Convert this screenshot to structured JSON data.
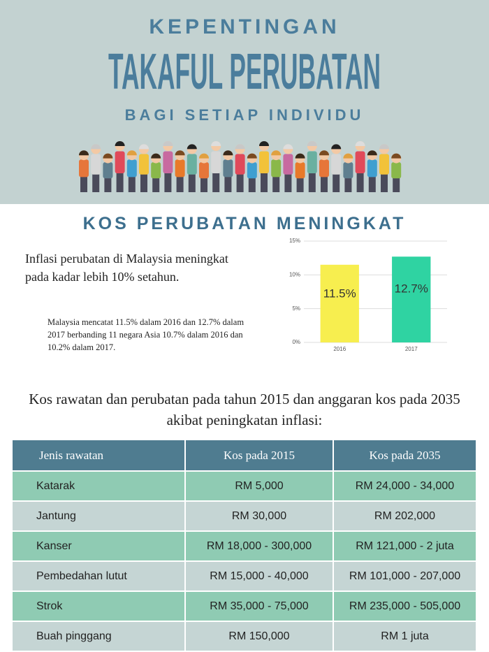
{
  "header": {
    "title_top": "KEPENTINGAN",
    "title_main": "TAKAFUL PERUBATAN",
    "subtitle": "BAGI SETIAP INDIVIDU"
  },
  "section_title": "KOS PERUBATAN MENINGKAT",
  "paragraph": "Inflasi perubatan di Malaysia meningkat pada kadar lebih 10% setahun.",
  "note": "Malaysia mencatat 11.5% dalam 2016 dan 12.7% dalam 2017 berbanding 11 negara Asia 10.7% dalam 2016 dan 10.2% dalam 2017.",
  "chart_data": {
    "type": "bar",
    "categories": [
      "2016",
      "2017"
    ],
    "values": [
      11.5,
      12.7
    ],
    "value_labels": [
      "11.5%",
      "12.7%"
    ],
    "colors": [
      "#f7ee4f",
      "#2fd3a2"
    ],
    "ylim": [
      0,
      15
    ],
    "yticks": [
      {
        "value": 0,
        "label": "0%"
      },
      {
        "value": 5,
        "label": "5%"
      },
      {
        "value": 10,
        "label": "10%"
      },
      {
        "value": 15,
        "label": "15%"
      }
    ],
    "grid": true
  },
  "intro": "Kos rawatan dan perubatan pada tahun 2015 dan anggaran kos pada 2035 akibat peningkatan inflasi:",
  "table": {
    "headers": [
      "Jenis rawatan",
      "Kos pada 2015",
      "Kos pada 2035"
    ],
    "rows": [
      [
        "Katarak",
        "RM 5,000",
        "RM 24,000 - 34,000"
      ],
      [
        "Jantung",
        "RM 30,000",
        "RM 202,000"
      ],
      [
        "Kanser",
        "RM 18,000 - 300,000",
        "RM 121,000 - 2 juta"
      ],
      [
        "Pembedahan lutut",
        "RM 15,000 - 40,000",
        "RM 101,000 - 207,000"
      ],
      [
        "Strok",
        "RM 35,000 - 75,000",
        "RM 235,000 - 505,000"
      ],
      [
        "Buah pinggang",
        "RM 150,000",
        "RM 1 juta"
      ]
    ]
  }
}
